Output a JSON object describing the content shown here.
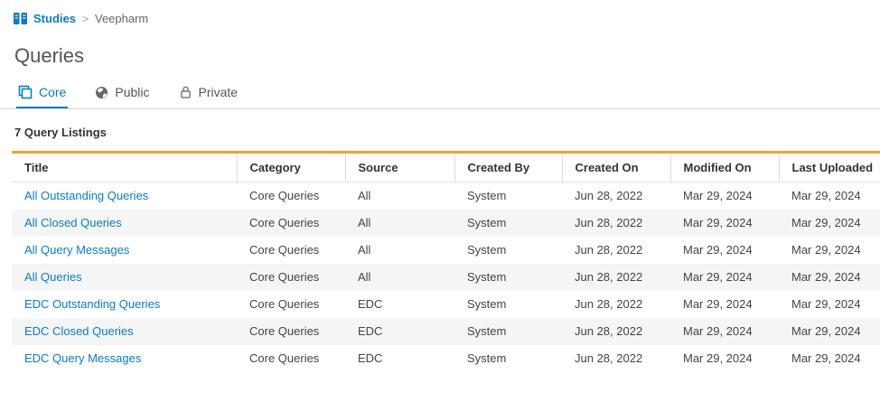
{
  "breadcrumb": {
    "root_label": "Studies",
    "separator": ">",
    "current_label": "Veepharm"
  },
  "page": {
    "title": "Queries"
  },
  "tabs": [
    {
      "label": "Core",
      "icon": "layers-icon",
      "active": true
    },
    {
      "label": "Public",
      "icon": "globe-icon",
      "active": false
    },
    {
      "label": "Private",
      "icon": "lock-icon",
      "active": false
    }
  ],
  "listings": {
    "count_label": "7 Query Listings"
  },
  "table": {
    "columns": [
      "Title",
      "Category",
      "Source",
      "Created By",
      "Created On",
      "Modified On",
      "Last Uploaded"
    ],
    "rows": [
      [
        "All Outstanding Queries",
        "Core Queries",
        "All",
        "System",
        "Jun 28, 2022",
        "Mar 29, 2024",
        "Mar 29, 2024"
      ],
      [
        "All Closed Queries",
        "Core Queries",
        "All",
        "System",
        "Jun 28, 2022",
        "Mar 29, 2024",
        "Mar 29, 2024"
      ],
      [
        "All Query Messages",
        "Core Queries",
        "All",
        "System",
        "Jun 28, 2022",
        "Mar 29, 2024",
        "Mar 29, 2024"
      ],
      [
        "All Queries",
        "Core Queries",
        "All",
        "System",
        "Jun 28, 2022",
        "Mar 29, 2024",
        "Mar 29, 2024"
      ],
      [
        "EDC Outstanding Queries",
        "Core Queries",
        "EDC",
        "System",
        "Jun 28, 2022",
        "Mar 29, 2024",
        "Mar 29, 2024"
      ],
      [
        "EDC Closed Queries",
        "Core Queries",
        "EDC",
        "System",
        "Jun 28, 2022",
        "Mar 29, 2024",
        "Mar 29, 2024"
      ],
      [
        "EDC Query Messages",
        "Core Queries",
        "EDC",
        "System",
        "Jun 28, 2022",
        "Mar 29, 2024",
        "Mar 29, 2024"
      ]
    ]
  },
  "colors": {
    "accent_blue": "#0c7cbd",
    "table_top_border": "#f1a12f",
    "row_stripe": "#f5f5f5"
  }
}
